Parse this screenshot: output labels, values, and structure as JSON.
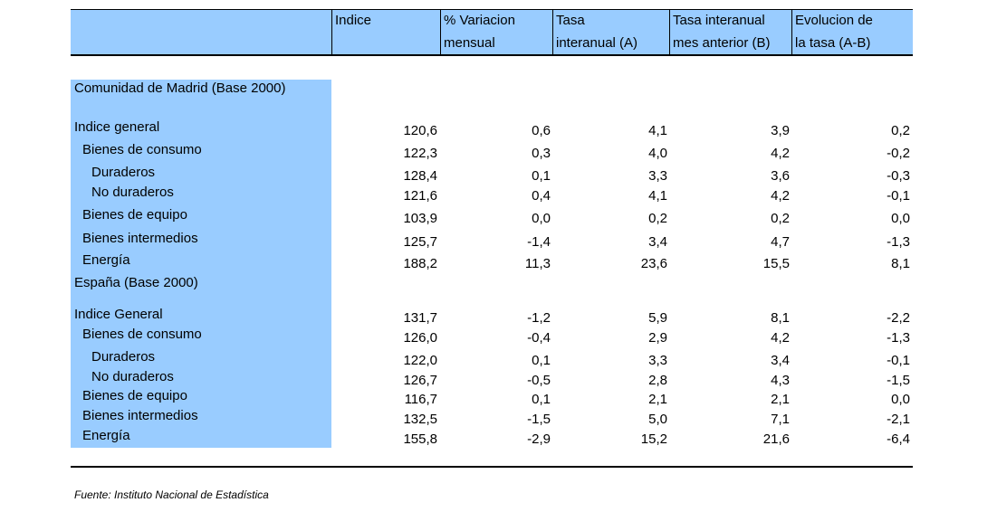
{
  "headers": [
    "Indice",
    "% Variacion\nmensual",
    "Tasa\ninteranual (A)",
    "Tasa interanual\nmes anterior (B)",
    "Evolucion de\nla tasa (A-B)"
  ],
  "sections": [
    {
      "title": "Comunidad de Madrid (Base 2000)",
      "rows": [
        {
          "label": "Indice general",
          "indent": 0,
          "values": [
            "120,6",
            "0,6",
            "4,1",
            "3,9",
            "0,2"
          ]
        },
        {
          "label": "Bienes de consumo",
          "indent": 1,
          "values": [
            "122,3",
            "0,3",
            "4,0",
            "4,2",
            "-0,2"
          ]
        },
        {
          "label": "Duraderos",
          "indent": 2,
          "values": [
            "128,4",
            "0,1",
            "3,3",
            "3,6",
            "-0,3"
          ]
        },
        {
          "label": "No duraderos",
          "indent": 2,
          "values": [
            "121,6",
            "0,4",
            "4,1",
            "4,2",
            "-0,1"
          ]
        },
        {
          "label": "Bienes de equipo",
          "indent": 1,
          "values": [
            "103,9",
            "0,0",
            "0,2",
            "0,2",
            "0,0"
          ]
        },
        {
          "label": "Bienes intermedios",
          "indent": 1,
          "values": [
            "125,7",
            "-1,4",
            "3,4",
            "4,7",
            "-1,3"
          ]
        },
        {
          "label": "Energía",
          "indent": 1,
          "values": [
            "188,2",
            "11,3",
            "23,6",
            "15,5",
            "8,1"
          ]
        }
      ]
    },
    {
      "title": "España (Base 2000)",
      "rows": [
        {
          "label": "Indice General",
          "indent": 0,
          "values": [
            "131,7",
            "-1,2",
            "5,9",
            "8,1",
            "-2,2"
          ]
        },
        {
          "label": "Bienes de consumo",
          "indent": 1,
          "values": [
            "126,0",
            "-0,4",
            "2,9",
            "4,2",
            "-1,3"
          ]
        },
        {
          "label": "Duraderos",
          "indent": 2,
          "values": [
            "122,0",
            "0,1",
            "3,3",
            "3,4",
            "-0,1"
          ]
        },
        {
          "label": "No duraderos",
          "indent": 2,
          "values": [
            "126,7",
            "-0,5",
            "2,8",
            "4,3",
            "-1,5"
          ]
        },
        {
          "label": "Bienes de equipo",
          "indent": 1,
          "values": [
            "116,7",
            "0,1",
            "2,1",
            "2,1",
            "0,0"
          ]
        },
        {
          "label": "Bienes intermedios",
          "indent": 1,
          "values": [
            "132,5",
            "-1,5",
            "5,0",
            "7,1",
            "-2,1"
          ]
        },
        {
          "label": "Energía",
          "indent": 1,
          "values": [
            "155,8",
            "-2,9",
            "15,2",
            "21,6",
            "-6,4"
          ]
        }
      ]
    }
  ],
  "source": "Fuente: Instituto Nacional de Estadística"
}
